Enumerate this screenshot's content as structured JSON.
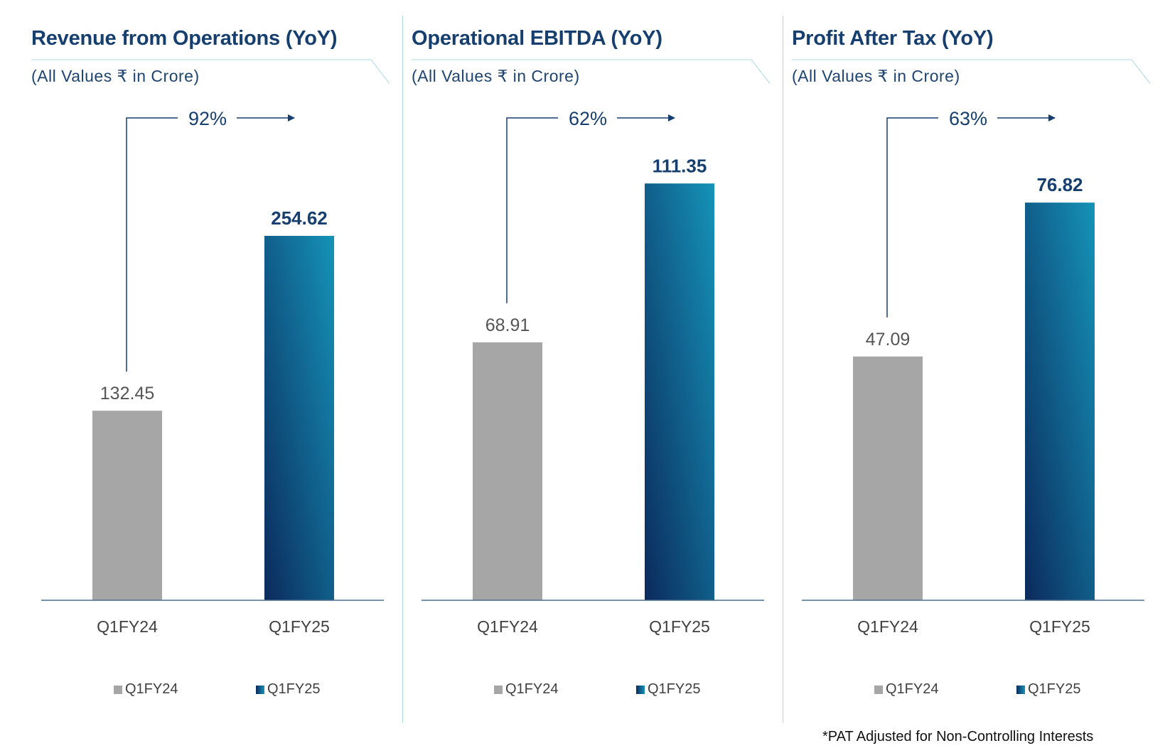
{
  "colors": {
    "title": "#163f70",
    "prior_bar": "#a6a6a6",
    "current_bar_dark": "#0b2a5c",
    "current_bar_light": "#1593b8",
    "axis": "#4d6f8f",
    "arrow": "#163f70",
    "divider": "#a8d8e6"
  },
  "legend": [
    "Q1FY24",
    "Q1FY25"
  ],
  "footnote": "*PAT Adjusted for Non-Controlling Interests",
  "chart_data": [
    {
      "type": "bar",
      "title": "Revenue from Operations (YoY)",
      "subtitle": "(All Values ₹ in Crore)",
      "categories": [
        "Q1FY24",
        "Q1FY25"
      ],
      "values": [
        132.45,
        254.62
      ],
      "value_labels": [
        "132.45",
        "254.62"
      ],
      "growth_label": "92%",
      "ylim": [
        0,
        340
      ],
      "legend": "bottom"
    },
    {
      "type": "bar",
      "title": "Operational EBITDA (YoY)",
      "subtitle": "(All Values ₹ in Crore)",
      "categories": [
        "Q1FY24",
        "Q1FY25"
      ],
      "values": [
        68.91,
        111.35
      ],
      "value_labels": [
        "68.91",
        "111.35"
      ],
      "growth_label": "62%",
      "ylim": [
        0,
        130
      ],
      "legend": "bottom"
    },
    {
      "type": "bar",
      "title": "Profit After Tax (YoY)",
      "subtitle": "(All Values ₹ in Crore)",
      "categories": [
        "Q1FY24",
        "Q1FY25"
      ],
      "values": [
        47.09,
        76.82
      ],
      "value_labels": [
        "47.09",
        "76.82"
      ],
      "growth_label": "63%",
      "ylim": [
        0,
        94
      ],
      "legend": "bottom"
    }
  ]
}
